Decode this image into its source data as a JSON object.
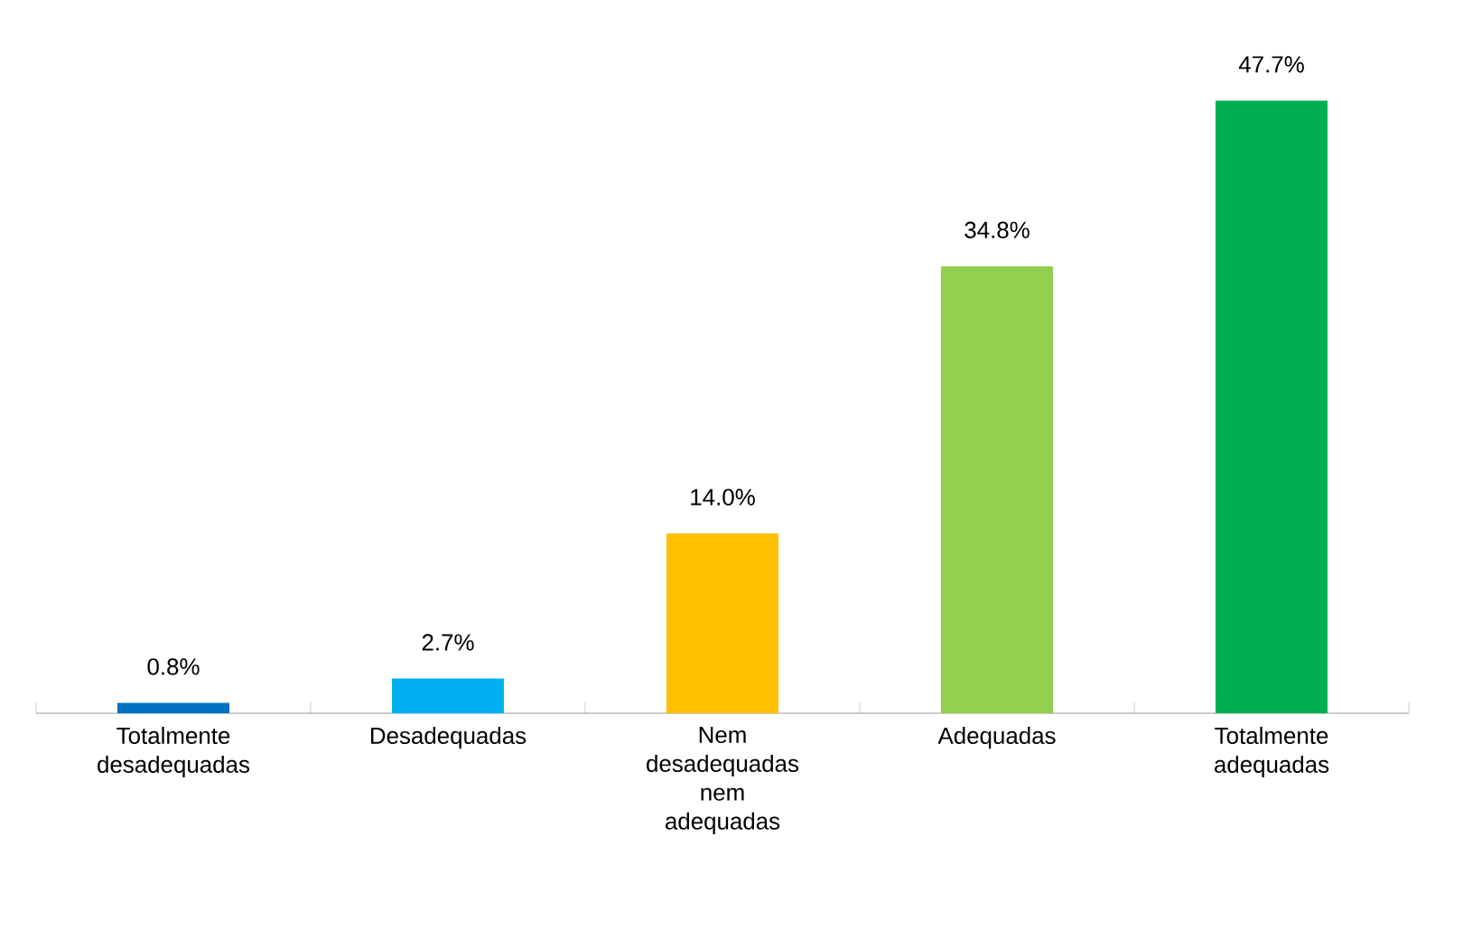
{
  "chart_data": {
    "type": "bar",
    "categories": [
      "Totalmente desadequadas",
      "Desadequadas",
      "Nem desadequadas nem adequadas",
      "Adequadas",
      "Totalmente adequadas"
    ],
    "values": [
      0.8,
      2.7,
      14.0,
      34.8,
      47.7
    ],
    "value_labels": [
      "0.8%",
      "2.7%",
      "14.0%",
      "34.8%",
      "47.7%"
    ],
    "colors": [
      "#0070c0",
      "#00b0f0",
      "#ffc000",
      "#92d050",
      "#00b050"
    ]
  }
}
